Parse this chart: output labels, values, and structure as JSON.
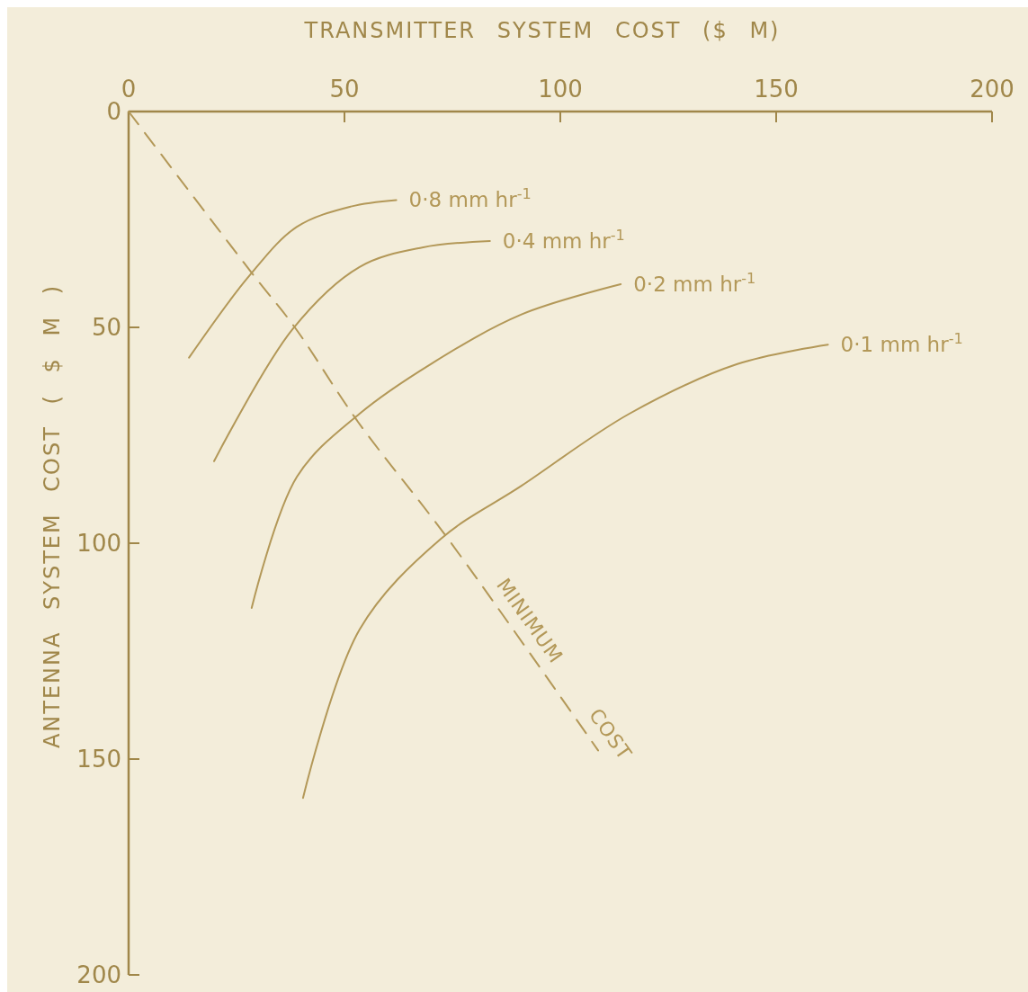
{
  "chart_data": {
    "type": "line",
    "xlabel": "TRANSMITTER SYSTEM COST ($ M)",
    "ylabel": "ANTENNA SYSTEM COST ( $ M )",
    "xlim": [
      0,
      200
    ],
    "xticks": [
      0,
      50,
      100,
      150,
      200
    ],
    "ylim": [
      200,
      0
    ],
    "yticks": [
      0,
      50,
      100,
      150,
      200
    ],
    "grid": false,
    "marker": "none",
    "line_style": "solid",
    "series": [
      {
        "name": "0·8 mm hr$^{-1}$",
        "color": "#b39858",
        "x": [
          14,
          28,
          39,
          51.5,
          62
        ],
        "values": [
          57,
          38,
          26.7,
          22,
          20.5
        ]
      },
      {
        "name": "0·4 mm hr$^{-1}$",
        "color": "#b39858",
        "x": [
          19.8,
          38,
          53.5,
          68,
          83.7
        ],
        "values": [
          81,
          50.4,
          36,
          31.5,
          30
        ]
      },
      {
        "name": "0·2 mm hr$^{-1}$",
        "color": "#b39858",
        "x": [
          28.5,
          39,
          53.5,
          70,
          91,
          114
        ],
        "values": [
          115,
          84.6,
          70,
          58.5,
          47,
          40
        ]
      },
      {
        "name": "0·1 mm hr$^{-1}$",
        "color": "#b39858",
        "x": [
          40.4,
          53.5,
          72.3,
          91,
          116,
          141,
          162
        ],
        "values": [
          159,
          120,
          99,
          86.7,
          70,
          58.5,
          54
        ]
      },
      {
        "name": "MINIMUM COST",
        "color": "#b39858",
        "line_style": "dashed",
        "x": [
          0,
          29,
          38.5,
          53,
          74,
          108.75
        ],
        "values": [
          0,
          38,
          50,
          71.7,
          99,
          148
        ]
      }
    ]
  }
}
